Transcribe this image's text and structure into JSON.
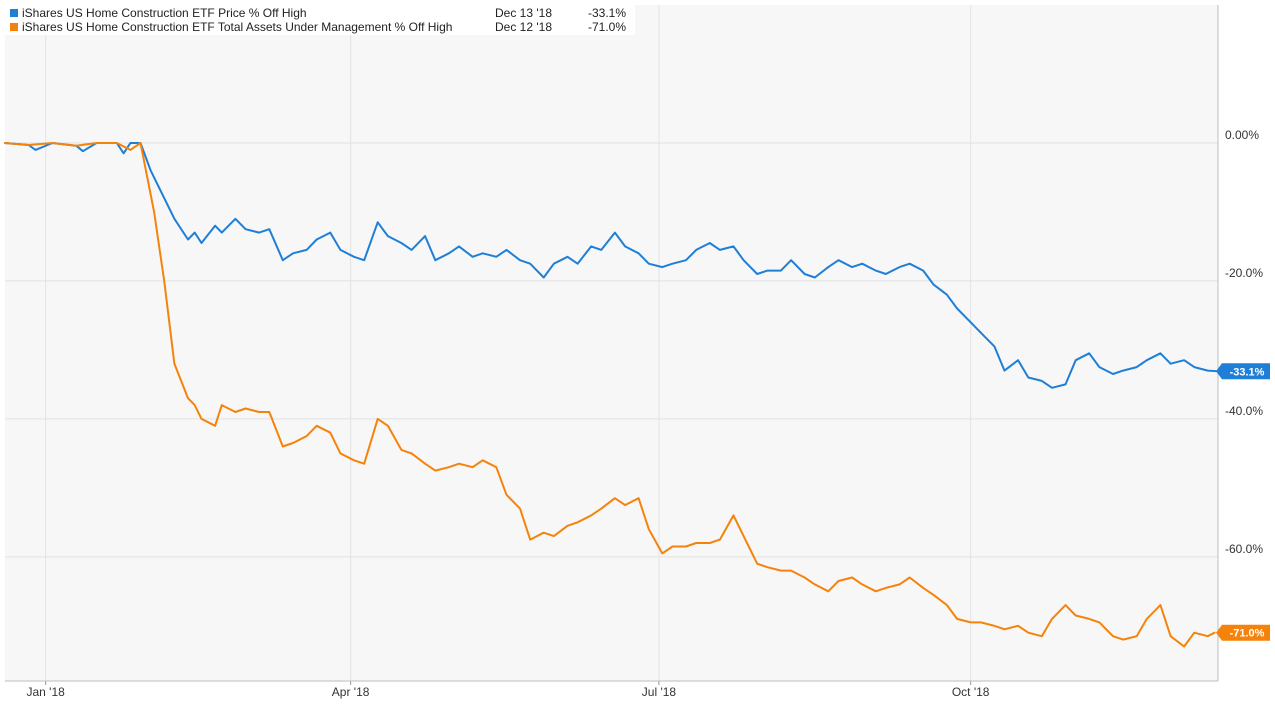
{
  "chart_data": {
    "type": "line",
    "title": "",
    "xlabel": "",
    "ylabel": "",
    "x_range": [
      "2017-12-20",
      "2018-12-13"
    ],
    "ylim": [
      -78,
      20
    ],
    "y_ticks": [
      {
        "value": 0,
        "label": "0.00%"
      },
      {
        "value": -20,
        "label": "-20.0%"
      },
      {
        "value": -40,
        "label": "-40.0%"
      },
      {
        "value": -60,
        "label": "-60.0%"
      }
    ],
    "x_ticks": [
      {
        "date": "2018-01-01",
        "label": "Jan '18"
      },
      {
        "date": "2018-04-01",
        "label": "Apr '18"
      },
      {
        "date": "2018-07-01",
        "label": "Jul '18"
      },
      {
        "date": "2018-10-01",
        "label": "Oct '18"
      }
    ],
    "grid": true,
    "legend_position": "top-left",
    "series": [
      {
        "name": "iShares US Home Construction ETF Price % Off High",
        "color": "#1f7fd6",
        "last_date": "Dec 13 '18",
        "last_value": "-33.1%",
        "end_label": "-33.1%",
        "points": [
          [
            "2017-12-20",
            0
          ],
          [
            "2017-12-27",
            -0.3
          ],
          [
            "2017-12-29",
            -1
          ],
          [
            "2018-01-03",
            0
          ],
          [
            "2018-01-10",
            -0.4
          ],
          [
            "2018-01-12",
            -1.2
          ],
          [
            "2018-01-16",
            0
          ],
          [
            "2018-01-22",
            0
          ],
          [
            "2018-01-24",
            -1.5
          ],
          [
            "2018-01-26",
            0
          ],
          [
            "2018-01-29",
            0
          ],
          [
            "2018-02-01",
            -4
          ],
          [
            "2018-02-05",
            -8
          ],
          [
            "2018-02-08",
            -11
          ],
          [
            "2018-02-12",
            -14
          ],
          [
            "2018-02-14",
            -13
          ],
          [
            "2018-02-16",
            -14.5
          ],
          [
            "2018-02-20",
            -12
          ],
          [
            "2018-02-22",
            -13
          ],
          [
            "2018-02-26",
            -11
          ],
          [
            "2018-03-01",
            -12.5
          ],
          [
            "2018-03-05",
            -13
          ],
          [
            "2018-03-08",
            -12.5
          ],
          [
            "2018-03-12",
            -17
          ],
          [
            "2018-03-15",
            -16
          ],
          [
            "2018-03-19",
            -15.5
          ],
          [
            "2018-03-22",
            -14
          ],
          [
            "2018-03-26",
            -13
          ],
          [
            "2018-03-29",
            -15.5
          ],
          [
            "2018-04-02",
            -16.5
          ],
          [
            "2018-04-05",
            -17
          ],
          [
            "2018-04-09",
            -11.5
          ],
          [
            "2018-04-12",
            -13.5
          ],
          [
            "2018-04-16",
            -14.5
          ],
          [
            "2018-04-19",
            -15.5
          ],
          [
            "2018-04-23",
            -13.5
          ],
          [
            "2018-04-26",
            -17
          ],
          [
            "2018-04-30",
            -16
          ],
          [
            "2018-05-03",
            -15
          ],
          [
            "2018-05-07",
            -16.5
          ],
          [
            "2018-05-10",
            -16
          ],
          [
            "2018-05-14",
            -16.5
          ],
          [
            "2018-05-17",
            -15.5
          ],
          [
            "2018-05-21",
            -17
          ],
          [
            "2018-05-24",
            -17.5
          ],
          [
            "2018-05-28",
            -19.5
          ],
          [
            "2018-05-31",
            -17.5
          ],
          [
            "2018-06-04",
            -16.5
          ],
          [
            "2018-06-07",
            -17.5
          ],
          [
            "2018-06-11",
            -15
          ],
          [
            "2018-06-14",
            -15.5
          ],
          [
            "2018-06-18",
            -13
          ],
          [
            "2018-06-21",
            -15
          ],
          [
            "2018-06-25",
            -16
          ],
          [
            "2018-06-28",
            -17.5
          ],
          [
            "2018-07-02",
            -18
          ],
          [
            "2018-07-05",
            -17.5
          ],
          [
            "2018-07-09",
            -17
          ],
          [
            "2018-07-12",
            -15.5
          ],
          [
            "2018-07-16",
            -14.5
          ],
          [
            "2018-07-19",
            -15.5
          ],
          [
            "2018-07-23",
            -15
          ],
          [
            "2018-07-26",
            -17
          ],
          [
            "2018-07-30",
            -19
          ],
          [
            "2018-08-02",
            -18.5
          ],
          [
            "2018-08-06",
            -18.5
          ],
          [
            "2018-08-09",
            -17
          ],
          [
            "2018-08-13",
            -19
          ],
          [
            "2018-08-16",
            -19.5
          ],
          [
            "2018-08-20",
            -18
          ],
          [
            "2018-08-23",
            -17
          ],
          [
            "2018-08-27",
            -18
          ],
          [
            "2018-08-30",
            -17.5
          ],
          [
            "2018-09-03",
            -18.5
          ],
          [
            "2018-09-06",
            -19
          ],
          [
            "2018-09-10",
            -18
          ],
          [
            "2018-09-13",
            -17.5
          ],
          [
            "2018-09-17",
            -18.5
          ],
          [
            "2018-09-20",
            -20.5
          ],
          [
            "2018-09-24",
            -22
          ],
          [
            "2018-09-27",
            -24
          ],
          [
            "2018-10-01",
            -26
          ],
          [
            "2018-10-04",
            -27.5
          ],
          [
            "2018-10-08",
            -29.5
          ],
          [
            "2018-10-11",
            -33
          ],
          [
            "2018-10-15",
            -31.5
          ],
          [
            "2018-10-18",
            -34
          ],
          [
            "2018-10-22",
            -34.5
          ],
          [
            "2018-10-25",
            -35.5
          ],
          [
            "2018-10-29",
            -35
          ],
          [
            "2018-11-01",
            -31.5
          ],
          [
            "2018-11-05",
            -30.5
          ],
          [
            "2018-11-08",
            -32.5
          ],
          [
            "2018-11-12",
            -33.5
          ],
          [
            "2018-11-15",
            -33
          ],
          [
            "2018-11-19",
            -32.5
          ],
          [
            "2018-11-22",
            -31.5
          ],
          [
            "2018-11-26",
            -30.5
          ],
          [
            "2018-11-29",
            -32
          ],
          [
            "2018-12-03",
            -31.5
          ],
          [
            "2018-12-06",
            -32.5
          ],
          [
            "2018-12-10",
            -33
          ],
          [
            "2018-12-13",
            -33.1
          ]
        ]
      },
      {
        "name": "iShares US Home Construction ETF Total Assets Under Management % Off High",
        "color": "#f5830b",
        "last_date": "Dec 12 '18",
        "last_value": "-71.0%",
        "end_label": "-71.0%",
        "points": [
          [
            "2017-12-20",
            0
          ],
          [
            "2017-12-27",
            -0.3
          ],
          [
            "2018-01-03",
            0
          ],
          [
            "2018-01-10",
            -0.4
          ],
          [
            "2018-01-16",
            0
          ],
          [
            "2018-01-22",
            0
          ],
          [
            "2018-01-26",
            -1
          ],
          [
            "2018-01-29",
            0
          ],
          [
            "2018-02-02",
            -10
          ],
          [
            "2018-02-05",
            -20
          ],
          [
            "2018-02-08",
            -32
          ],
          [
            "2018-02-12",
            -37
          ],
          [
            "2018-02-14",
            -38
          ],
          [
            "2018-02-16",
            -40
          ],
          [
            "2018-02-20",
            -41
          ],
          [
            "2018-02-22",
            -38
          ],
          [
            "2018-02-26",
            -39
          ],
          [
            "2018-03-01",
            -38.5
          ],
          [
            "2018-03-05",
            -39
          ],
          [
            "2018-03-08",
            -39
          ],
          [
            "2018-03-12",
            -44
          ],
          [
            "2018-03-15",
            -43.5
          ],
          [
            "2018-03-19",
            -42.5
          ],
          [
            "2018-03-22",
            -41
          ],
          [
            "2018-03-26",
            -42
          ],
          [
            "2018-03-29",
            -45
          ],
          [
            "2018-04-02",
            -46
          ],
          [
            "2018-04-05",
            -46.5
          ],
          [
            "2018-04-09",
            -40
          ],
          [
            "2018-04-12",
            -41
          ],
          [
            "2018-04-16",
            -44.5
          ],
          [
            "2018-04-19",
            -45
          ],
          [
            "2018-04-23",
            -46.5
          ],
          [
            "2018-04-26",
            -47.5
          ],
          [
            "2018-04-30",
            -47
          ],
          [
            "2018-05-03",
            -46.5
          ],
          [
            "2018-05-07",
            -47
          ],
          [
            "2018-05-10",
            -46
          ],
          [
            "2018-05-14",
            -47
          ],
          [
            "2018-05-17",
            -51
          ],
          [
            "2018-05-21",
            -53
          ],
          [
            "2018-05-24",
            -57.5
          ],
          [
            "2018-05-28",
            -56.5
          ],
          [
            "2018-05-31",
            -57
          ],
          [
            "2018-06-04",
            -55.5
          ],
          [
            "2018-06-07",
            -55
          ],
          [
            "2018-06-11",
            -54
          ],
          [
            "2018-06-14",
            -53
          ],
          [
            "2018-06-18",
            -51.5
          ],
          [
            "2018-06-21",
            -52.5
          ],
          [
            "2018-06-25",
            -51.5
          ],
          [
            "2018-06-28",
            -56
          ],
          [
            "2018-07-02",
            -59.5
          ],
          [
            "2018-07-05",
            -58.5
          ],
          [
            "2018-07-09",
            -58.5
          ],
          [
            "2018-07-12",
            -58
          ],
          [
            "2018-07-16",
            -58
          ],
          [
            "2018-07-19",
            -57.5
          ],
          [
            "2018-07-23",
            -54
          ],
          [
            "2018-07-26",
            -57
          ],
          [
            "2018-07-30",
            -61
          ],
          [
            "2018-08-02",
            -61.5
          ],
          [
            "2018-08-06",
            -62
          ],
          [
            "2018-08-09",
            -62
          ],
          [
            "2018-08-13",
            -63
          ],
          [
            "2018-08-16",
            -64
          ],
          [
            "2018-08-20",
            -65
          ],
          [
            "2018-08-23",
            -63.5
          ],
          [
            "2018-08-27",
            -63
          ],
          [
            "2018-08-30",
            -64
          ],
          [
            "2018-09-03",
            -65
          ],
          [
            "2018-09-06",
            -64.5
          ],
          [
            "2018-09-10",
            -64
          ],
          [
            "2018-09-13",
            -63
          ],
          [
            "2018-09-17",
            -64.5
          ],
          [
            "2018-09-20",
            -65.5
          ],
          [
            "2018-09-24",
            -67
          ],
          [
            "2018-09-27",
            -69
          ],
          [
            "2018-10-01",
            -69.5
          ],
          [
            "2018-10-04",
            -69.5
          ],
          [
            "2018-10-08",
            -70
          ],
          [
            "2018-10-11",
            -70.5
          ],
          [
            "2018-10-15",
            -70
          ],
          [
            "2018-10-18",
            -71
          ],
          [
            "2018-10-22",
            -71.5
          ],
          [
            "2018-10-25",
            -69
          ],
          [
            "2018-10-29",
            -67
          ],
          [
            "2018-11-01",
            -68.5
          ],
          [
            "2018-11-05",
            -69
          ],
          [
            "2018-11-08",
            -69.5
          ],
          [
            "2018-11-12",
            -71.5
          ],
          [
            "2018-11-15",
            -72
          ],
          [
            "2018-11-19",
            -71.5
          ],
          [
            "2018-11-22",
            -69
          ],
          [
            "2018-11-26",
            -67
          ],
          [
            "2018-11-29",
            -71.5
          ],
          [
            "2018-12-03",
            -73
          ],
          [
            "2018-12-06",
            -71
          ],
          [
            "2018-12-10",
            -71.5
          ],
          [
            "2018-12-12",
            -71
          ]
        ]
      }
    ]
  }
}
